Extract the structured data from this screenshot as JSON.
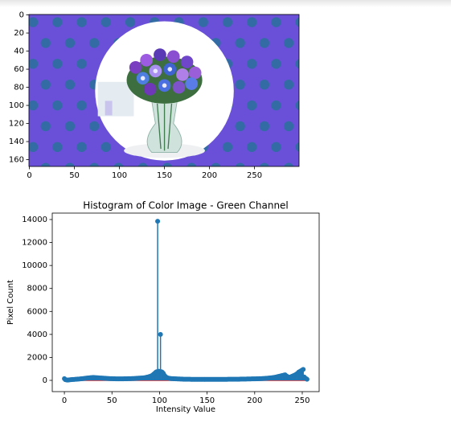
{
  "chart_data": [
    {
      "type": "image",
      "xlim": [
        -0.5,
        299.5
      ],
      "ylim": [
        167.5,
        -0.5
      ],
      "xticks": [
        0,
        50,
        100,
        150,
        200,
        250
      ],
      "yticks": [
        0,
        20,
        40,
        60,
        80,
        100,
        120,
        140,
        160
      ]
    },
    {
      "type": "stem",
      "title": "Histogram of Color Image - Green Channel",
      "xlabel": "Intensity Value",
      "ylabel": "Pixel Count",
      "color": "#1f77b4",
      "baseline_color": "#d62728",
      "xlim": [
        -12.75,
        267.75
      ],
      "ylim": [
        -980,
        14560
      ],
      "xticks": [
        0,
        50,
        100,
        150,
        200,
        250
      ],
      "yticks": [
        0,
        2000,
        4000,
        6000,
        8000,
        10000,
        12000,
        14000
      ],
      "values": [
        150,
        60,
        40,
        30,
        30,
        40,
        50,
        60,
        70,
        80,
        80,
        90,
        100,
        100,
        110,
        110,
        120,
        130,
        140,
        150,
        160,
        170,
        180,
        190,
        200,
        210,
        220,
        230,
        240,
        240,
        250,
        250,
        240,
        240,
        230,
        230,
        220,
        210,
        200,
        200,
        190,
        190,
        180,
        180,
        170,
        170,
        160,
        160,
        150,
        150,
        150,
        140,
        140,
        140,
        130,
        130,
        130,
        130,
        130,
        130,
        130,
        130,
        130,
        140,
        140,
        140,
        140,
        150,
        150,
        150,
        150,
        160,
        160,
        160,
        170,
        170,
        180,
        180,
        190,
        190,
        200,
        200,
        210,
        220,
        230,
        240,
        260,
        280,
        300,
        320,
        350,
        380,
        420,
        480,
        550,
        620,
        700,
        750,
        13850,
        800,
        780,
        4000,
        750,
        700,
        600,
        450,
        350,
        280,
        230,
        200,
        180,
        170,
        160,
        150,
        150,
        140,
        140,
        130,
        130,
        120,
        120,
        120,
        110,
        110,
        110,
        100,
        100,
        100,
        100,
        100,
        100,
        100,
        100,
        90,
        90,
        90,
        90,
        90,
        90,
        90,
        90,
        90,
        90,
        90,
        90,
        90,
        90,
        90,
        90,
        90,
        90,
        90,
        90,
        90,
        90,
        90,
        90,
        90,
        90,
        90,
        90,
        90,
        90,
        90,
        90,
        90,
        90,
        90,
        90,
        90,
        90,
        90,
        100,
        100,
        100,
        100,
        100,
        100,
        100,
        100,
        100,
        100,
        100,
        100,
        100,
        110,
        110,
        110,
        110,
        110,
        110,
        110,
        120,
        120,
        120,
        120,
        120,
        130,
        130,
        130,
        130,
        130,
        140,
        140,
        140,
        150,
        150,
        150,
        160,
        160,
        170,
        170,
        180,
        180,
        190,
        200,
        210,
        220,
        230,
        240,
        250,
        260,
        280,
        300,
        320,
        340,
        360,
        380,
        400,
        420,
        440,
        460,
        480,
        400,
        350,
        300,
        280,
        260,
        300,
        350,
        380,
        420,
        450,
        500,
        550,
        600,
        700,
        750,
        800,
        850,
        900,
        950,
        300,
        200,
        150,
        100
      ]
    }
  ]
}
